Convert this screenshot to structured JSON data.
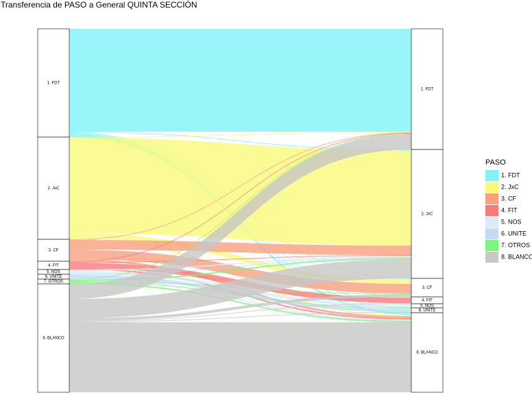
{
  "chart_data": {
    "type": "alluvial",
    "title": "Transferencia de PASO a General QUINTA SECCIÓN",
    "legend_title": "PASO",
    "legend_position": "right",
    "categories": [
      "1. FDT",
      "2. JxC",
      "3. CF",
      "4. FIT",
      "5. NOS",
      "6. UNITE",
      "7. OTROS",
      "8. BLANCO"
    ],
    "colors": [
      "#7ff3f7",
      "#fafa7a",
      "#f9a07f",
      "#f77b7b",
      "#d7ecf7",
      "#c2dcf5",
      "#7ef57e",
      "#c7c7c4"
    ],
    "flows": [
      {
        "from": "1. FDT",
        "to": "1. FDT",
        "value": 150
      },
      {
        "from": "1. FDT",
        "to": "2. JxC",
        "value": 1
      },
      {
        "from": "1. FDT",
        "to": "3. CF",
        "value": 1
      },
      {
        "from": "1. FDT",
        "to": "4. FIT",
        "value": 1
      },
      {
        "from": "1. FDT",
        "to": "5. NOS",
        "value": 1
      },
      {
        "from": "1. FDT",
        "to": "6. UNITE",
        "value": 1
      },
      {
        "from": "1. FDT",
        "to": "8. BLANCO",
        "value": 3
      },
      {
        "from": "2. JxC",
        "to": "1. FDT",
        "value": 1
      },
      {
        "from": "2. JxC",
        "to": "2. JxC",
        "value": 139
      },
      {
        "from": "2. JxC",
        "to": "3. CF",
        "value": 7
      },
      {
        "from": "2. JxC",
        "to": "8. BLANCO",
        "value": 2
      },
      {
        "from": "3. CF",
        "to": "1. FDT",
        "value": 1
      },
      {
        "from": "3. CF",
        "to": "2. JxC",
        "value": 14
      },
      {
        "from": "3. CF",
        "to": "3. CF",
        "value": 14
      },
      {
        "from": "3. CF",
        "to": "8. BLANCO",
        "value": 3
      },
      {
        "from": "4. FIT",
        "to": "1. FDT",
        "value": 1
      },
      {
        "from": "4. FIT",
        "to": "2. JxC",
        "value": 1
      },
      {
        "from": "4. FIT",
        "to": "4. FIT",
        "value": 8
      },
      {
        "from": "4. FIT",
        "to": "8. BLANCO",
        "value": 2
      },
      {
        "from": "5. NOS",
        "to": "2. JxC",
        "value": 2
      },
      {
        "from": "5. NOS",
        "to": "5. NOS",
        "value": 4
      },
      {
        "from": "5. NOS",
        "to": "8. BLANCO",
        "value": 1
      },
      {
        "from": "6. UNITE",
        "to": "2. JxC",
        "value": 1
      },
      {
        "from": "6. UNITE",
        "to": "6. UNITE",
        "value": 5
      },
      {
        "from": "6. UNITE",
        "to": "8. BLANCO",
        "value": 1
      },
      {
        "from": "7. OTROS",
        "to": "1. FDT",
        "value": 1
      },
      {
        "from": "7. OTROS",
        "to": "2. JxC",
        "value": 2
      },
      {
        "from": "7. OTROS",
        "to": "3. CF",
        "value": 1
      },
      {
        "from": "7. OTROS",
        "to": "5. NOS",
        "value": 1
      },
      {
        "from": "7. OTROS",
        "to": "8. BLANCO",
        "value": 2
      },
      {
        "from": "8. BLANCO",
        "to": "1. FDT",
        "value": 22
      },
      {
        "from": "8. BLANCO",
        "to": "2. JxC",
        "value": 28
      },
      {
        "from": "8. BLANCO",
        "to": "3. CF",
        "value": 4
      },
      {
        "from": "8. BLANCO",
        "to": "4. FIT",
        "value": 1
      },
      {
        "from": "8. BLANCO",
        "to": "6. UNITE",
        "value": 1
      },
      {
        "from": "8. BLANCO",
        "to": "8. BLANCO",
        "value": 102
      }
    ]
  }
}
